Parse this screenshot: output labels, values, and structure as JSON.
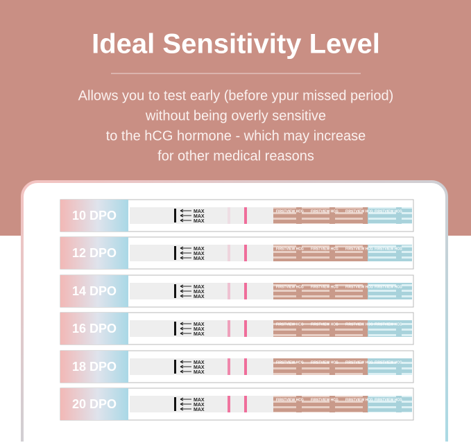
{
  "header": {
    "title": "Ideal Sensitivity Level",
    "description": [
      "Allows you to test early (before ypur missed period)",
      "without being overly sensitive",
      "to the hCG hormone - which may increase",
      "for other medical reasons"
    ]
  },
  "rows": [
    {
      "label": "10 DPO"
    },
    {
      "label": "12 DPO"
    },
    {
      "label": "14 DPO"
    },
    {
      "label": "16 DPO"
    },
    {
      "label": "18 DPO"
    },
    {
      "label": "20 DPO"
    }
  ],
  "strip": {
    "max_label": "MAX",
    "brand": "FIRSTVIEW HCG"
  }
}
